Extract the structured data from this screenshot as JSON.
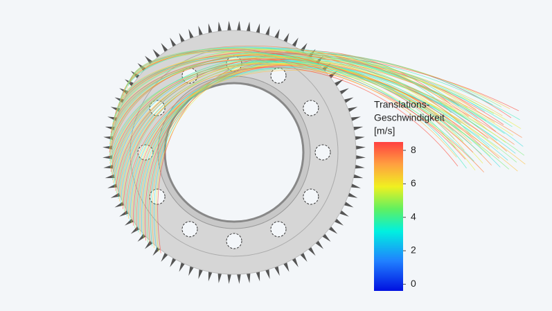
{
  "legend": {
    "title": [
      "Translations-",
      "Geschwindigkeit",
      "[m/s]"
    ],
    "range": [
      -0.4,
      8.5
    ],
    "ticks": [
      0,
      2,
      4,
      6,
      8
    ]
  }
}
